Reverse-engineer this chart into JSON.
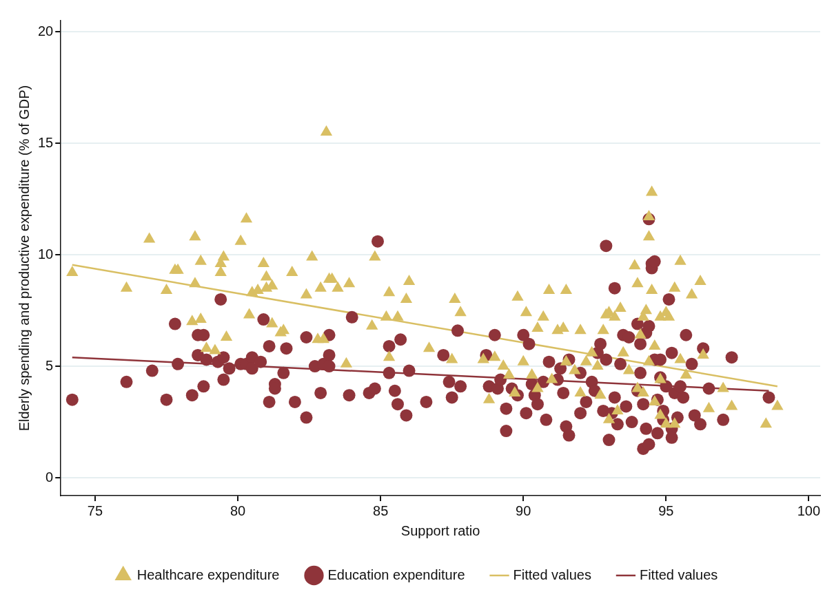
{
  "chart_data": {
    "type": "scatter",
    "xlabel": "Support ratio",
    "ylabel": "Elderly spending and productive expenditure (% of GDP)",
    "xlim": [
      73.8,
      100.4
    ],
    "xticks": [
      75,
      80,
      85,
      90,
      95,
      100
    ],
    "ylim": [
      -0.8,
      20.5
    ],
    "yticks": [
      0,
      5,
      10,
      15,
      20
    ],
    "grid": "y",
    "legend": "bottom",
    "series": [
      {
        "name": "Healthcare expenditure",
        "type": "scatter",
        "marker": "triangle",
        "color": "#d9bf63",
        "x": [
          74.2,
          76.1,
          76.9,
          77.5,
          77.8,
          77.9,
          78.4,
          78.5,
          78.5,
          78.7,
          78.7,
          78.9,
          79.2,
          79.4,
          79.4,
          79.5,
          79.6,
          80.1,
          80.3,
          80.4,
          80.5,
          80.7,
          80.9,
          81.0,
          81.0,
          81.2,
          81.2,
          81.5,
          81.6,
          81.9,
          82.4,
          82.6,
          82.8,
          82.9,
          83.0,
          83.1,
          83.2,
          83.3,
          83.5,
          83.8,
          83.9,
          84.7,
          84.8,
          85.2,
          85.3,
          85.3,
          85.6,
          85.9,
          86.0,
          86.7,
          87.5,
          87.6,
          87.8,
          88.6,
          88.8,
          89.0,
          89.3,
          89.5,
          89.7,
          89.8,
          90.0,
          90.1,
          90.3,
          90.5,
          90.7,
          90.9,
          91.2,
          91.5,
          91.4,
          91.5,
          91.8,
          92.0,
          92.2,
          92.4,
          92.6,
          92.8,
          92.9,
          93.0,
          93.2,
          93.4,
          93.5,
          93.7,
          93.9,
          94.0,
          94.1,
          94.2,
          94.3,
          94.4,
          94.4,
          94.5,
          94.5,
          94.6,
          94.8,
          95.0,
          95.1,
          95.3,
          95.5,
          95.5,
          95.7,
          95.9,
          96.2,
          96.3,
          96.5,
          97.0,
          97.3,
          98.5,
          98.9,
          94.0,
          94.2,
          94.6,
          94.8,
          95.0,
          93.3,
          93.0,
          94.4,
          95.3,
          94.8,
          92.0,
          91.0,
          90.5,
          92.7
        ],
        "values": [
          9.2,
          8.5,
          10.7,
          8.4,
          9.3,
          9.3,
          7.0,
          10.8,
          8.7,
          9.7,
          7.1,
          5.8,
          5.7,
          9.6,
          9.2,
          9.9,
          6.3,
          10.6,
          11.6,
          7.3,
          8.3,
          8.4,
          9.6,
          9.0,
          8.5,
          6.9,
          8.6,
          6.5,
          6.6,
          9.2,
          8.2,
          9.9,
          6.2,
          8.5,
          6.2,
          15.5,
          8.9,
          8.9,
          8.5,
          5.1,
          8.7,
          6.8,
          9.9,
          7.2,
          8.3,
          5.4,
          7.2,
          8.0,
          8.8,
          5.8,
          5.3,
          8.0,
          7.4,
          5.3,
          3.5,
          5.4,
          5.0,
          4.6,
          3.8,
          8.1,
          5.2,
          7.4,
          4.6,
          6.7,
          7.2,
          8.4,
          6.6,
          8.4,
          6.7,
          5.2,
          4.8,
          6.6,
          5.2,
          5.6,
          5.0,
          6.6,
          7.3,
          7.4,
          7.2,
          7.6,
          5.6,
          4.8,
          9.5,
          8.7,
          6.4,
          7.2,
          7.5,
          11.7,
          10.8,
          8.4,
          12.8,
          5.9,
          7.2,
          7.4,
          7.2,
          8.5,
          9.7,
          5.3,
          4.6,
          8.2,
          8.8,
          5.5,
          3.1,
          4.0,
          3.2,
          2.4,
          3.2,
          4.0,
          3.8,
          3.4,
          2.8,
          2.4,
          3.0,
          2.6,
          5.2,
          2.4,
          4.4,
          3.8,
          4.4,
          4.0,
          3.7
        ]
      },
      {
        "name": "Education expenditure",
        "type": "scatter",
        "marker": "circle",
        "color": "#8f343a",
        "x": [
          74.2,
          76.1,
          77.0,
          77.5,
          77.8,
          77.9,
          78.4,
          78.6,
          78.6,
          78.8,
          78.8,
          78.9,
          79.3,
          79.4,
          79.5,
          79.5,
          79.7,
          80.1,
          80.3,
          80.5,
          80.5,
          80.8,
          80.9,
          81.1,
          81.1,
          81.3,
          81.3,
          81.6,
          81.7,
          82.0,
          82.4,
          82.4,
          82.7,
          82.9,
          83.0,
          83.2,
          83.2,
          83.2,
          83.9,
          84.0,
          84.6,
          84.8,
          84.9,
          85.3,
          85.3,
          85.5,
          85.6,
          85.7,
          85.9,
          86.0,
          86.6,
          87.2,
          87.4,
          87.5,
          87.7,
          87.8,
          88.7,
          88.8,
          89.0,
          89.1,
          89.2,
          89.4,
          89.4,
          89.6,
          89.8,
          90.0,
          90.1,
          90.2,
          90.3,
          90.4,
          90.5,
          90.7,
          90.8,
          90.9,
          91.2,
          91.3,
          91.4,
          91.5,
          91.6,
          91.6,
          92.0,
          92.0,
          92.2,
          92.4,
          92.5,
          92.6,
          92.7,
          92.8,
          92.9,
          92.9,
          93.0,
          93.1,
          93.2,
          93.2,
          93.3,
          93.4,
          93.5,
          93.6,
          93.7,
          93.8,
          94.0,
          94.1,
          94.1,
          94.2,
          94.2,
          94.3,
          94.4,
          94.4,
          94.5,
          94.5,
          94.6,
          94.6,
          94.7,
          94.7,
          94.8,
          94.8,
          94.3,
          94.4,
          94.9,
          95.0,
          95.1,
          95.2,
          95.2,
          95.3,
          95.4,
          95.5,
          95.6,
          95.7,
          95.9,
          96.0,
          96.2,
          96.3,
          96.5,
          97.0,
          97.3,
          98.6,
          95.2,
          94.9,
          94.0
        ],
        "values": [
          3.5,
          4.3,
          4.8,
          3.5,
          6.9,
          5.1,
          3.7,
          6.4,
          5.5,
          6.4,
          4.1,
          5.3,
          5.2,
          8.0,
          4.4,
          5.4,
          4.9,
          5.1,
          5.1,
          5.4,
          4.9,
          5.2,
          7.1,
          3.4,
          5.9,
          4.2,
          4.0,
          4.7,
          5.8,
          3.4,
          2.7,
          6.3,
          5.0,
          3.8,
          5.1,
          5.5,
          6.4,
          5.0,
          3.7,
          7.2,
          3.8,
          4.0,
          10.6,
          5.9,
          4.7,
          3.9,
          3.3,
          6.2,
          2.8,
          4.8,
          3.4,
          5.5,
          4.3,
          3.6,
          6.6,
          4.1,
          5.5,
          4.1,
          6.4,
          4.0,
          4.4,
          3.1,
          2.1,
          4.0,
          3.7,
          6.4,
          2.9,
          6.0,
          4.2,
          3.7,
          3.3,
          4.3,
          2.6,
          5.2,
          4.4,
          4.9,
          3.8,
          2.3,
          5.3,
          1.9,
          4.7,
          2.9,
          3.4,
          4.3,
          3.9,
          5.6,
          6.0,
          3.0,
          10.4,
          5.3,
          1.7,
          2.9,
          8.5,
          3.6,
          2.4,
          5.1,
          6.4,
          3.2,
          6.3,
          2.5,
          6.9,
          6.0,
          4.7,
          1.3,
          3.3,
          6.5,
          11.6,
          6.8,
          9.6,
          9.4,
          9.7,
          5.3,
          3.5,
          2.0,
          4.5,
          5.3,
          2.2,
          1.5,
          3.0,
          4.1,
          8.0,
          5.6,
          2.2,
          3.8,
          2.7,
          4.1,
          3.6,
          6.4,
          5.1,
          2.8,
          2.4,
          5.8,
          4.0,
          2.6,
          5.4,
          3.6,
          1.8,
          2.6,
          3.9
        ]
      },
      {
        "name": "Fitted values",
        "type": "line",
        "marker": "none",
        "color": "#d9bf63",
        "x": [
          74.2,
          98.9
        ],
        "values": [
          9.55,
          4.1
        ]
      },
      {
        "name": "Fitted values",
        "type": "line",
        "marker": "none",
        "color": "#8f343a",
        "x": [
          74.2,
          98.6
        ],
        "values": [
          5.4,
          3.9
        ]
      }
    ]
  }
}
